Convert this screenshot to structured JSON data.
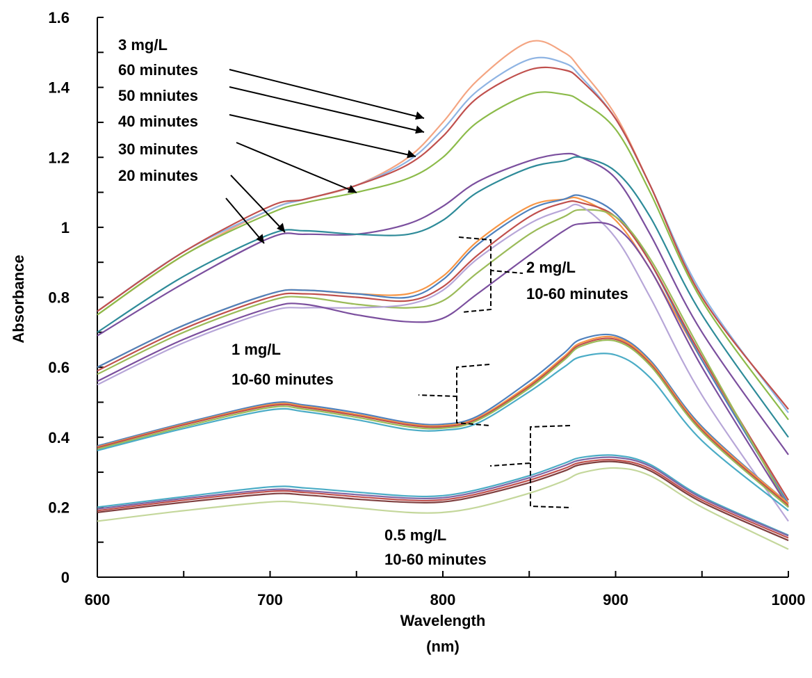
{
  "chart_data": {
    "type": "line",
    "xlabel": "Wavelength",
    "xlabel_unit": "(nm)",
    "ylabel": "Absorbance",
    "xlim": [
      600,
      1000
    ],
    "ylim": [
      0,
      1.6
    ],
    "x_ticks": [
      600,
      700,
      800,
      900,
      1000
    ],
    "x_tick_labels": [
      "600",
      "700",
      "800",
      "900",
      "1000"
    ],
    "y_ticks": [
      0,
      0.2,
      0.4,
      0.6,
      0.8,
      1,
      1.2,
      1.4,
      1.6
    ],
    "y_tick_labels": [
      "0",
      "0.2",
      "0.4",
      "0.6",
      "0.8",
      "1",
      "1.2",
      "1.4",
      "1.6"
    ],
    "grid": false,
    "x": [
      600,
      650,
      700,
      720,
      750,
      780,
      800,
      820,
      850,
      870,
      880,
      900,
      920,
      950,
      1000
    ],
    "series": [
      {
        "color": "#f4a582",
        "values": [
          0.75,
          0.92,
          1.05,
          1.08,
          1.12,
          1.2,
          1.3,
          1.42,
          1.53,
          1.5,
          1.45,
          1.32,
          1.12,
          0.8,
          0.48
        ]
      },
      {
        "color": "#8fb4e3",
        "values": [
          0.76,
          0.93,
          1.05,
          1.08,
          1.12,
          1.19,
          1.28,
          1.39,
          1.48,
          1.47,
          1.43,
          1.31,
          1.12,
          0.81,
          0.47
        ]
      },
      {
        "color": "#c0504d",
        "values": [
          0.76,
          0.93,
          1.06,
          1.08,
          1.12,
          1.18,
          1.26,
          1.37,
          1.45,
          1.45,
          1.42,
          1.31,
          1.12,
          0.8,
          0.48
        ]
      },
      {
        "color": "#8cbb4a",
        "values": [
          0.75,
          0.92,
          1.04,
          1.07,
          1.1,
          1.14,
          1.2,
          1.3,
          1.38,
          1.38,
          1.36,
          1.28,
          1.1,
          0.79,
          0.45
        ]
      },
      {
        "color": "#7b4f9e",
        "values": [
          0.69,
          0.84,
          0.97,
          0.98,
          0.98,
          1.01,
          1.06,
          1.13,
          1.19,
          1.21,
          1.2,
          1.14,
          0.98,
          0.7,
          0.35
        ]
      },
      {
        "color": "#2e8b99",
        "values": [
          0.7,
          0.86,
          0.98,
          0.99,
          0.98,
          0.98,
          1.02,
          1.1,
          1.17,
          1.19,
          1.2,
          1.16,
          1.03,
          0.75,
          0.4
        ]
      },
      {
        "color": "#f79646",
        "values": [
          0.6,
          0.72,
          0.81,
          0.82,
          0.81,
          0.81,
          0.86,
          0.96,
          1.06,
          1.08,
          1.08,
          1.02,
          0.88,
          0.62,
          0.22
        ]
      },
      {
        "color": "#4f81bd",
        "values": [
          0.6,
          0.72,
          0.81,
          0.82,
          0.81,
          0.8,
          0.85,
          0.95,
          1.05,
          1.08,
          1.09,
          1.04,
          0.9,
          0.62,
          0.21
        ]
      },
      {
        "color": "#c0504d",
        "values": [
          0.59,
          0.71,
          0.8,
          0.81,
          0.8,
          0.79,
          0.83,
          0.92,
          1.03,
          1.07,
          1.07,
          1.03,
          0.9,
          0.63,
          0.22
        ]
      },
      {
        "color": "#9bbb59",
        "values": [
          0.58,
          0.7,
          0.79,
          0.8,
          0.78,
          0.77,
          0.79,
          0.87,
          0.98,
          1.03,
          1.05,
          1.03,
          0.91,
          0.64,
          0.2
        ]
      },
      {
        "color": "#b7a6d8",
        "values": [
          0.55,
          0.67,
          0.76,
          0.77,
          0.77,
          0.78,
          0.82,
          0.91,
          1.01,
          1.05,
          1.06,
          0.97,
          0.8,
          0.52,
          0.16
        ]
      },
      {
        "color": "#7b4f9e",
        "values": [
          0.56,
          0.68,
          0.77,
          0.78,
          0.75,
          0.73,
          0.74,
          0.81,
          0.92,
          0.99,
          1.01,
          1.0,
          0.88,
          0.6,
          0.2
        ]
      },
      {
        "color": "#4f81bd",
        "values": [
          0.375,
          0.44,
          0.497,
          0.492,
          0.47,
          0.442,
          0.437,
          0.46,
          0.56,
          0.64,
          0.68,
          0.69,
          0.62,
          0.43,
          0.21
        ]
      },
      {
        "color": "#f79646",
        "values": [
          0.372,
          0.437,
          0.493,
          0.488,
          0.465,
          0.438,
          0.433,
          0.455,
          0.55,
          0.63,
          0.67,
          0.685,
          0.615,
          0.425,
          0.21
        ]
      },
      {
        "color": "#c0504d",
        "values": [
          0.37,
          0.435,
          0.49,
          0.485,
          0.462,
          0.435,
          0.43,
          0.452,
          0.545,
          0.625,
          0.665,
          0.68,
          0.61,
          0.42,
          0.205
        ]
      },
      {
        "color": "#9bbb59",
        "values": [
          0.366,
          0.43,
          0.485,
          0.48,
          0.457,
          0.43,
          0.426,
          0.448,
          0.54,
          0.62,
          0.66,
          0.675,
          0.605,
          0.415,
          0.2
        ]
      },
      {
        "color": "#4bacc6",
        "values": [
          0.362,
          0.425,
          0.478,
          0.473,
          0.45,
          0.422,
          0.42,
          0.44,
          0.53,
          0.6,
          0.63,
          0.635,
          0.57,
          0.39,
          0.19
        ]
      },
      {
        "color": "#4bacc6",
        "values": [
          0.2,
          0.23,
          0.258,
          0.255,
          0.243,
          0.232,
          0.233,
          0.25,
          0.29,
          0.325,
          0.342,
          0.348,
          0.322,
          0.23,
          0.12
        ]
      },
      {
        "color": "#8064a2",
        "values": [
          0.195,
          0.225,
          0.25,
          0.247,
          0.236,
          0.226,
          0.227,
          0.244,
          0.284,
          0.318,
          0.335,
          0.342,
          0.317,
          0.226,
          0.118
        ]
      },
      {
        "color": "#c0504d",
        "values": [
          0.19,
          0.22,
          0.245,
          0.242,
          0.23,
          0.22,
          0.221,
          0.238,
          0.277,
          0.31,
          0.328,
          0.335,
          0.31,
          0.22,
          0.112
        ]
      },
      {
        "color": "#7f3f3f",
        "values": [
          0.185,
          0.214,
          0.238,
          0.235,
          0.223,
          0.214,
          0.215,
          0.232,
          0.27,
          0.303,
          0.322,
          0.33,
          0.304,
          0.214,
          0.105
        ]
      },
      {
        "color": "#c4d79b",
        "values": [
          0.16,
          0.19,
          0.215,
          0.212,
          0.198,
          0.185,
          0.185,
          0.2,
          0.24,
          0.275,
          0.298,
          0.312,
          0.29,
          0.2,
          0.08
        ]
      }
    ],
    "annotations": {
      "group_3": [
        "3 mg/L",
        "60 minutes",
        "50 mniutes",
        "40 minutes",
        "30 minutes",
        "20 minutes"
      ],
      "group_2": [
        "2 mg/L",
        "10-60 minutes"
      ],
      "group_1": [
        "1 mg/L",
        "10-60 minutes"
      ],
      "group_05": [
        "0.5 mg/L",
        "10-60 minutes"
      ]
    }
  }
}
